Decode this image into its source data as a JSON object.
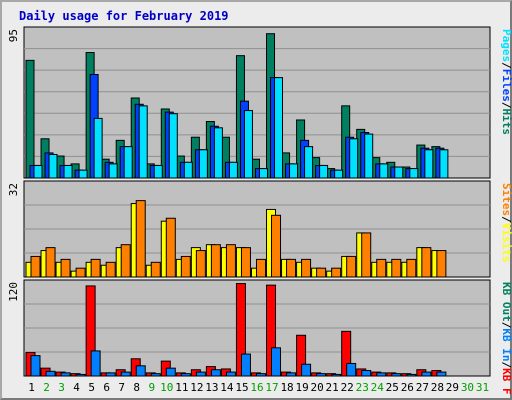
{
  "page": {
    "title": "Daily usage for February 2019"
  },
  "colors": {
    "hits": "#008060",
    "files": "#0040ff",
    "pages": "#00e0ff",
    "visits": "#ffff00",
    "sites": "#ff8000",
    "kbin": "#0080ff",
    "kbout": "#ff0000",
    "panel_bg": "#c0c0c0",
    "weekend": "#00a000"
  },
  "chart_data": [
    {
      "type": "bar",
      "panel": "hits-files-pages",
      "title": "Daily usage for February 2019",
      "ymax_label": "95",
      "ylim": [
        0,
        95
      ],
      "grid": true,
      "legend_placement": "right",
      "legend": [
        {
          "text": "Hits",
          "color": "#008060"
        },
        {
          "text": "/",
          "color": "#000000"
        },
        {
          "text": "Files",
          "color": "#0040ff"
        },
        {
          "text": "/",
          "color": "#000000"
        },
        {
          "text": "Pages",
          "color": "#00e0ff"
        }
      ],
      "categories": [
        "1",
        "2",
        "3",
        "4",
        "5",
        "6",
        "7",
        "8",
        "9",
        "10",
        "11",
        "12",
        "13",
        "14",
        "15",
        "16",
        "17",
        "18",
        "19",
        "20",
        "21",
        "22",
        "23",
        "24",
        "25",
        "26",
        "27",
        "28",
        "29",
        "30",
        "31"
      ],
      "series": [
        {
          "name": "Hits",
          "color": "#008060",
          "values": [
            75,
            25,
            14,
            9,
            80,
            12,
            24,
            51,
            9,
            44,
            14,
            26,
            36,
            26,
            78,
            12,
            92,
            16,
            37,
            13,
            6,
            46,
            31,
            13,
            10,
            7,
            21,
            20,
            0,
            0,
            0
          ]
        },
        {
          "name": "Files",
          "color": "#0040ff",
          "values": [
            8,
            16,
            8,
            5,
            66,
            10,
            20,
            47,
            8,
            42,
            10,
            18,
            33,
            10,
            49,
            6,
            64,
            9,
            24,
            8,
            5,
            26,
            29,
            9,
            7,
            6,
            19,
            19,
            0,
            0,
            0
          ]
        },
        {
          "name": "Pages",
          "color": "#00e0ff",
          "values": [
            8,
            15,
            8,
            5,
            38,
            9,
            20,
            46,
            8,
            41,
            10,
            18,
            32,
            10,
            43,
            6,
            64,
            9,
            20,
            8,
            5,
            25,
            28,
            9,
            7,
            6,
            18,
            18,
            0,
            0,
            0
          ]
        }
      ]
    },
    {
      "type": "bar",
      "panel": "visits-sites",
      "ymax_label": "32",
      "ylim": [
        0,
        32
      ],
      "grid": true,
      "legend_placement": "right",
      "legend": [
        {
          "text": "Visits",
          "color": "#ffff00"
        },
        {
          "text": "/",
          "color": "#000000"
        },
        {
          "text": "Sites",
          "color": "#ff8000"
        }
      ],
      "categories": [
        "1",
        "2",
        "3",
        "4",
        "5",
        "6",
        "7",
        "8",
        "9",
        "10",
        "11",
        "12",
        "13",
        "14",
        "15",
        "16",
        "17",
        "18",
        "19",
        "20",
        "21",
        "22",
        "23",
        "24",
        "25",
        "26",
        "27",
        "28",
        "29",
        "30",
        "31"
      ],
      "series": [
        {
          "name": "Visits",
          "color": "#ffff00",
          "values": [
            5,
            9,
            5,
            2,
            5,
            4,
            10,
            25,
            4,
            19,
            6,
            10,
            11,
            10,
            10,
            3,
            23,
            6,
            5,
            3,
            2,
            7,
            15,
            5,
            5,
            5,
            10,
            9,
            0,
            0,
            0
          ]
        },
        {
          "name": "Sites",
          "color": "#ff8000",
          "values": [
            7,
            10,
            6,
            3,
            6,
            5,
            11,
            26,
            5,
            20,
            7,
            9,
            11,
            11,
            10,
            6,
            21,
            6,
            6,
            3,
            3,
            7,
            15,
            6,
            6,
            6,
            10,
            9,
            0,
            0,
            0
          ]
        }
      ]
    },
    {
      "type": "bar",
      "panel": "kbin-kbout",
      "ymax_label": "120",
      "ylim": [
        0,
        120
      ],
      "grid": true,
      "legend_placement": "right",
      "legend": [
        {
          "text": "KB F",
          "color": "#ff0000"
        },
        {
          "text": "/",
          "color": "#000000"
        },
        {
          "text": "KB In",
          "color": "#0080ff"
        },
        {
          "text": "/",
          "color": "#000000"
        },
        {
          "text": "KB Out",
          "color": "#008060"
        }
      ],
      "categories": [
        "1",
        "2",
        "3",
        "4",
        "5",
        "6",
        "7",
        "8",
        "9",
        "10",
        "11",
        "12",
        "13",
        "14",
        "15",
        "16",
        "17",
        "18",
        "19",
        "20",
        "21",
        "22",
        "23",
        "24",
        "25",
        "26",
        "27",
        "28",
        "29",
        "30",
        "31"
      ],
      "series": [
        {
          "name": "KB F",
          "color": "#ff0000",
          "values": [
            30,
            10,
            5,
            3,
            115,
            4,
            8,
            22,
            4,
            19,
            4,
            8,
            12,
            9,
            118,
            4,
            116,
            5,
            52,
            4,
            3,
            57,
            9,
            5,
            4,
            3,
            8,
            7,
            0,
            0,
            0
          ]
        },
        {
          "name": "KB In",
          "color": "#0080ff",
          "values": [
            26,
            6,
            4,
            2,
            32,
            4,
            5,
            13,
            3,
            10,
            3,
            5,
            8,
            5,
            28,
            3,
            36,
            4,
            15,
            3,
            2,
            16,
            7,
            4,
            3,
            2,
            5,
            5,
            0,
            0,
            0
          ]
        }
      ]
    }
  ],
  "x_axis": {
    "labels": [
      "1",
      "2",
      "3",
      "4",
      "5",
      "6",
      "7",
      "8",
      "9",
      "10",
      "11",
      "12",
      "13",
      "14",
      "15",
      "16",
      "17",
      "18",
      "19",
      "20",
      "21",
      "22",
      "23",
      "24",
      "25",
      "26",
      "27",
      "28",
      "29",
      "30",
      "31"
    ],
    "weekend_days": [
      "2",
      "3",
      "9",
      "10",
      "16",
      "17",
      "23",
      "24",
      "30",
      "31"
    ]
  }
}
